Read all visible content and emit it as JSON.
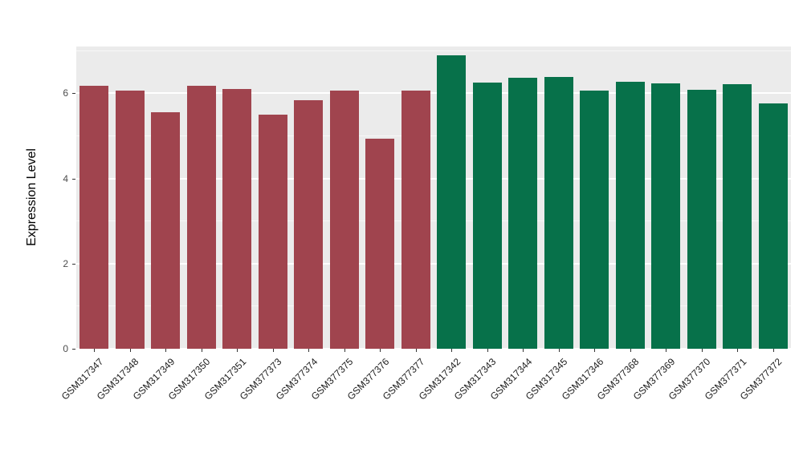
{
  "chart_data": {
    "type": "bar",
    "title": "",
    "xlabel": "",
    "ylabel": "Expression Level",
    "ylim": [
      0,
      7.1
    ],
    "yticks": [
      0,
      2,
      4,
      6
    ],
    "yticks_minor": [
      1,
      3,
      5,
      7
    ],
    "legend": "none",
    "panel_background": "#EBEBEB",
    "gridline_color": "#FFFFFF",
    "group_colors": {
      "A": "#A0444E",
      "B": "#07714A"
    },
    "bars": [
      {
        "label": "GSM317347",
        "value": 6.17,
        "group": "A"
      },
      {
        "label": "GSM317348",
        "value": 6.07,
        "group": "A"
      },
      {
        "label": "GSM317349",
        "value": 5.56,
        "group": "A"
      },
      {
        "label": "GSM317350",
        "value": 6.17,
        "group": "A"
      },
      {
        "label": "GSM317351",
        "value": 6.1,
        "group": "A"
      },
      {
        "label": "GSM377373",
        "value": 5.5,
        "group": "A"
      },
      {
        "label": "GSM377374",
        "value": 5.83,
        "group": "A"
      },
      {
        "label": "GSM377375",
        "value": 6.07,
        "group": "A"
      },
      {
        "label": "GSM377376",
        "value": 4.93,
        "group": "A"
      },
      {
        "label": "GSM377377",
        "value": 6.06,
        "group": "A"
      },
      {
        "label": "GSM317342",
        "value": 6.9,
        "group": "B"
      },
      {
        "label": "GSM317343",
        "value": 6.26,
        "group": "B"
      },
      {
        "label": "GSM317344",
        "value": 6.36,
        "group": "B"
      },
      {
        "label": "GSM317345",
        "value": 6.39,
        "group": "B"
      },
      {
        "label": "GSM317346",
        "value": 6.06,
        "group": "B"
      },
      {
        "label": "GSM377368",
        "value": 6.28,
        "group": "B"
      },
      {
        "label": "GSM377369",
        "value": 6.24,
        "group": "B"
      },
      {
        "label": "GSM377370",
        "value": 6.08,
        "group": "B"
      },
      {
        "label": "GSM377371",
        "value": 6.21,
        "group": "B"
      },
      {
        "label": "GSM377372",
        "value": 5.76,
        "group": "B"
      }
    ]
  }
}
